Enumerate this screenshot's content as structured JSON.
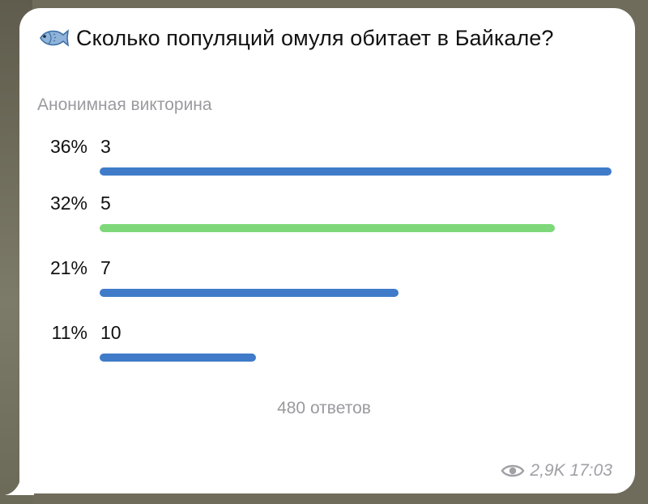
{
  "poll": {
    "question": "Сколько популяций омуля обитает в Байкале?",
    "question_icon": "fish-icon",
    "type_label": "Анонимная викторина",
    "options": [
      {
        "percent_label": "36%",
        "label": "3",
        "share": 36,
        "correct": false
      },
      {
        "percent_label": "32%",
        "label": "5",
        "share": 32,
        "correct": true
      },
      {
        "percent_label": "21%",
        "label": "7",
        "share": 21,
        "correct": false
      },
      {
        "percent_label": "11%",
        "label": "10",
        "share": 11,
        "correct": false
      }
    ],
    "total_answers": "480 ответов"
  },
  "meta": {
    "views": "2,9K",
    "time": "17:03",
    "views_icon": "eye-icon"
  },
  "colors": {
    "bar": "#3f7bc9",
    "bar_correct": "#7ed87a",
    "muted_text": "#9a9a9f"
  }
}
